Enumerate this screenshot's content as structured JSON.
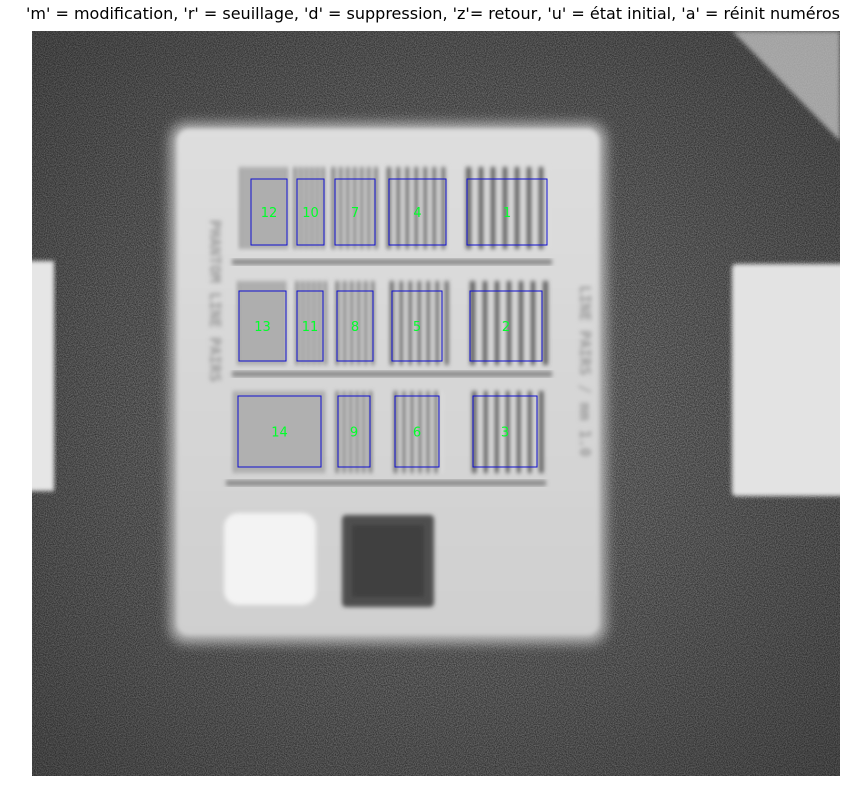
{
  "window": {
    "title": "'m' = modification, 'r' = seuillage, 'd' = suppression, 'z'= retour, 'u' = état initial, 'a' = réinit numéros"
  },
  "image": {
    "colors": {
      "roi_border": "#1010d0",
      "roi_label": "#00ff2a",
      "background": "#6e6e6e",
      "phantom": "#d9d9d9"
    },
    "engraved_text": {
      "left": "PHANTOM LINE PAIRS",
      "right": "LINE PAIRS / mm  1.0"
    }
  },
  "rois": [
    {
      "label": "1"
    },
    {
      "label": "2"
    },
    {
      "label": "3"
    },
    {
      "label": "4"
    },
    {
      "label": "5"
    },
    {
      "label": "6"
    },
    {
      "label": "7"
    },
    {
      "label": "8"
    },
    {
      "label": "9"
    },
    {
      "label": "10"
    },
    {
      "label": "11"
    },
    {
      "label": "12"
    },
    {
      "label": "13"
    },
    {
      "label": "14"
    }
  ]
}
